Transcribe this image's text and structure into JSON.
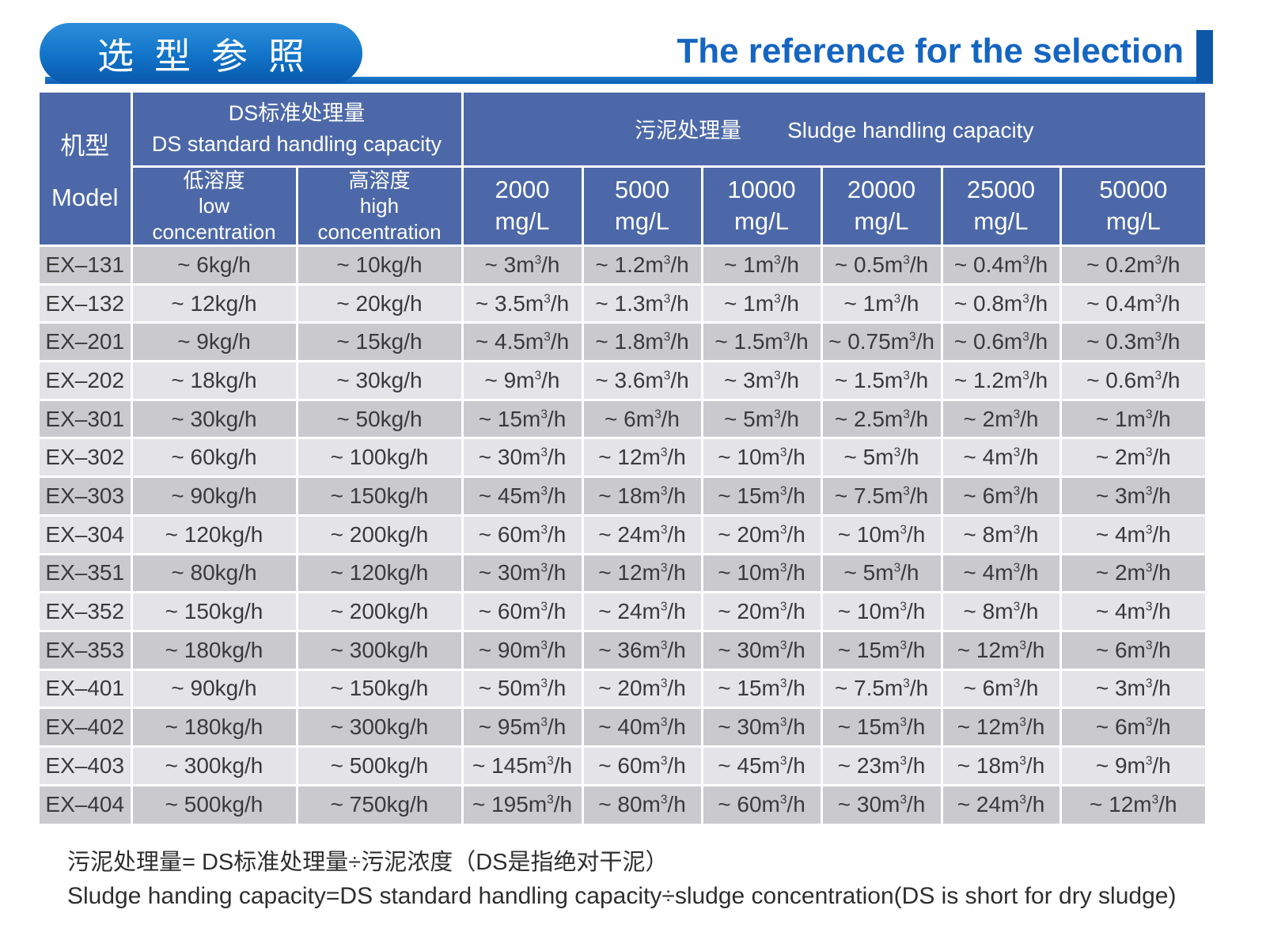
{
  "colors": {
    "header_blue": "#4C68A8",
    "row_dark": "#CAC9CE",
    "row_light": "#E4E3E8",
    "title_blue": "#1565C0",
    "pill_blue": "#1173C8",
    "accent_bar_blue": "#0D5BB0"
  },
  "header": {
    "badge": "选型参照",
    "title": "The reference for the selection"
  },
  "table": {
    "model_header": {
      "cn": "机型",
      "en": "Model"
    },
    "ds_group": {
      "cn": "DS标准处理量",
      "en": "DS standard handling capacity"
    },
    "sludge_group": {
      "cn": "污泥处理量",
      "en": "Sludge handling capacity"
    },
    "low_header": {
      "cn": "低溶度",
      "en_line1": "low",
      "en_line2": "concentration"
    },
    "high_header": {
      "cn": "高溶度",
      "en_line1": "high",
      "en_line2": "concentration"
    },
    "concentration_columns": [
      {
        "value": "2000",
        "unit": "mg/L"
      },
      {
        "value": "5000",
        "unit": "mg/L"
      },
      {
        "value": "10000",
        "unit": "mg/L"
      },
      {
        "value": "20000",
        "unit": "mg/L"
      },
      {
        "value": "25000",
        "unit": "mg/L"
      },
      {
        "value": "50000",
        "unit": "mg/L"
      }
    ],
    "rows": [
      {
        "model": "EX–131",
        "values": [
          "~ 6kg/h",
          "~ 10kg/h",
          "~ 3m³/h",
          "~ 1.2m³/h",
          "~ 1m³/h",
          "~ 0.5m³/h",
          "~ 0.4m³/h",
          "~ 0.2m³/h"
        ]
      },
      {
        "model": "EX–132",
        "values": [
          "~ 12kg/h",
          "~ 20kg/h",
          "~ 3.5m³/h",
          "~ 1.3m³/h",
          "~ 1m³/h",
          "~ 1m³/h",
          "~ 0.8m³/h",
          "~ 0.4m³/h"
        ]
      },
      {
        "model": "EX–201",
        "values": [
          "~ 9kg/h",
          "~ 15kg/h",
          "~ 4.5m³/h",
          "~ 1.8m³/h",
          "~ 1.5m³/h",
          "~ 0.75m³/h",
          "~ 0.6m³/h",
          "~ 0.3m³/h"
        ]
      },
      {
        "model": "EX–202",
        "values": [
          "~ 18kg/h",
          "~ 30kg/h",
          "~ 9m³/h",
          "~ 3.6m³/h",
          "~ 3m³/h",
          "~ 1.5m³/h",
          "~ 1.2m³/h",
          "~ 0.6m³/h"
        ]
      },
      {
        "model": "EX–301",
        "values": [
          "~ 30kg/h",
          "~ 50kg/h",
          "~ 15m³/h",
          "~ 6m³/h",
          "~ 5m³/h",
          "~ 2.5m³/h",
          "~ 2m³/h",
          "~ 1m³/h"
        ]
      },
      {
        "model": "EX–302",
        "values": [
          "~ 60kg/h",
          "~ 100kg/h",
          "~ 30m³/h",
          "~ 12m³/h",
          "~ 10m³/h",
          "~ 5m³/h",
          "~ 4m³/h",
          "~ 2m³/h"
        ]
      },
      {
        "model": "EX–303",
        "values": [
          "~ 90kg/h",
          "~ 150kg/h",
          "~ 45m³/h",
          "~ 18m³/h",
          "~ 15m³/h",
          "~ 7.5m³/h",
          "~ 6m³/h",
          "~ 3m³/h"
        ]
      },
      {
        "model": "EX–304",
        "values": [
          "~ 120kg/h",
          "~ 200kg/h",
          "~ 60m³/h",
          "~ 24m³/h",
          "~ 20m³/h",
          "~ 10m³/h",
          "~ 8m³/h",
          "~ 4m³/h"
        ]
      },
      {
        "model": "EX–351",
        "values": [
          "~ 80kg/h",
          "~ 120kg/h",
          "~ 30m³/h",
          "~ 12m³/h",
          "~ 10m³/h",
          "~ 5m³/h",
          "~ 4m³/h",
          "~ 2m³/h"
        ]
      },
      {
        "model": "EX–352",
        "values": [
          "~ 150kg/h",
          "~ 200kg/h",
          "~ 60m³/h",
          "~ 24m³/h",
          "~ 20m³/h",
          "~ 10m³/h",
          "~ 8m³/h",
          "~ 4m³/h"
        ]
      },
      {
        "model": "EX–353",
        "values": [
          "~ 180kg/h",
          "~ 300kg/h",
          "~ 90m³/h",
          "~ 36m³/h",
          "~ 30m³/h",
          "~ 15m³/h",
          "~ 12m³/h",
          "~ 6m³/h"
        ]
      },
      {
        "model": "EX–401",
        "values": [
          "~ 90kg/h",
          "~ 150kg/h",
          "~ 50m³/h",
          "~ 20m³/h",
          "~ 15m³/h",
          "~ 7.5m³/h",
          "~ 6m³/h",
          "~ 3m³/h"
        ]
      },
      {
        "model": "EX–402",
        "values": [
          "~ 180kg/h",
          "~ 300kg/h",
          "~ 95m³/h",
          "~ 40m³/h",
          "~ 30m³/h",
          "~ 15m³/h",
          "~ 12m³/h",
          "~ 6m³/h"
        ]
      },
      {
        "model": "EX–403",
        "values": [
          "~ 300kg/h",
          "~ 500kg/h",
          "~ 145m³/h",
          "~ 60m³/h",
          "~ 45m³/h",
          "~ 23m³/h",
          "~ 18m³/h",
          "~ 9m³/h"
        ]
      },
      {
        "model": "EX–404",
        "values": [
          "~ 500kg/h",
          "~ 750kg/h",
          "~ 195m³/h",
          "~ 80m³/h",
          "~ 60m³/h",
          "~ 30m³/h",
          "~ 24m³/h",
          "~ 12m³/h"
        ]
      }
    ]
  },
  "footer": {
    "line_cn": "污泥处理量= DS标准处理量÷污泥浓度（DS是指绝对干泥）",
    "line_en": "Sludge handing capacity=DS standard handling capacity÷sludge concentration(DS is short for dry sludge)"
  }
}
